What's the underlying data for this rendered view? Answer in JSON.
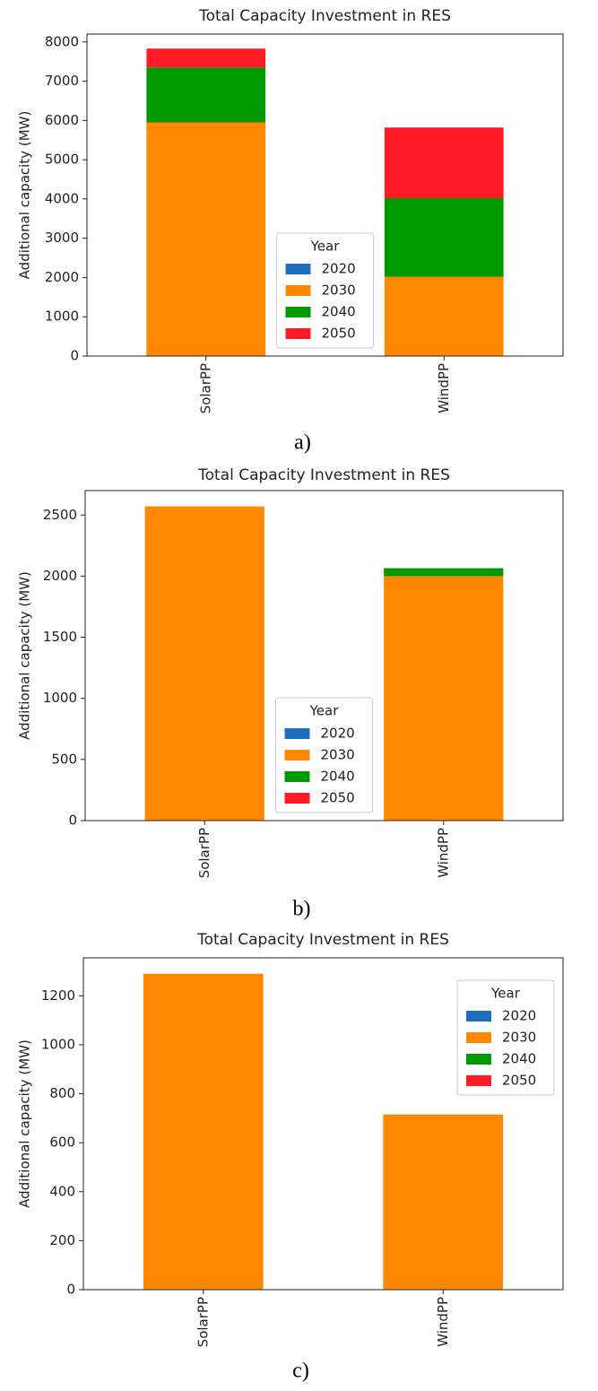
{
  "chart_data": [
    {
      "type": "bar",
      "stacked": true,
      "title": "Total Capacity Investment in RES",
      "ylabel": "Additional capacity (MW)",
      "categories": [
        "SolarPP",
        "WindPP"
      ],
      "series": [
        {
          "name": "2020",
          "color": "#1f6fbf",
          "values": [
            0,
            0
          ]
        },
        {
          "name": "2030",
          "color": "#ff8800",
          "values": [
            5950,
            2020
          ]
        },
        {
          "name": "2040",
          "color": "#009900",
          "values": [
            1400,
            2000
          ]
        },
        {
          "name": "2050",
          "color": "#ff1c24",
          "values": [
            480,
            1800
          ]
        }
      ],
      "legend_title": "Year",
      "legend": "lower center",
      "ylim": [
        0,
        8200
      ],
      "yticks": [
        0,
        1000,
        2000,
        3000,
        4000,
        5000,
        6000,
        7000,
        8000
      ],
      "caption": "a)"
    },
    {
      "type": "bar",
      "stacked": true,
      "title": "Total Capacity Investment in RES",
      "ylabel": "Additional capacity (MW)",
      "categories": [
        "SolarPP",
        "WindPP"
      ],
      "series": [
        {
          "name": "2020",
          "color": "#1f6fbf",
          "values": [
            0,
            0
          ]
        },
        {
          "name": "2030",
          "color": "#ff8800",
          "values": [
            2570,
            2000
          ]
        },
        {
          "name": "2040",
          "color": "#009900",
          "values": [
            0,
            65
          ]
        },
        {
          "name": "2050",
          "color": "#ff1c24",
          "values": [
            0,
            0
          ]
        }
      ],
      "legend_title": "Year",
      "legend": "lower center",
      "ylim": [
        0,
        2700
      ],
      "yticks": [
        0,
        500,
        1000,
        1500,
        2000,
        2500
      ],
      "caption": "b)"
    },
    {
      "type": "bar",
      "stacked": true,
      "title": "Total Capacity Investment in RES",
      "ylabel": "Additional capacity (MW)",
      "categories": [
        "SolarPP",
        "WindPP"
      ],
      "series": [
        {
          "name": "2020",
          "color": "#1f6fbf",
          "values": [
            0,
            0
          ]
        },
        {
          "name": "2030",
          "color": "#ff8800",
          "values": [
            1290,
            715
          ]
        },
        {
          "name": "2040",
          "color": "#009900",
          "values": [
            0,
            0
          ]
        },
        {
          "name": "2050",
          "color": "#ff1c24",
          "values": [
            0,
            0
          ]
        }
      ],
      "legend_title": "Year",
      "legend": "upper right",
      "ylim": [
        0,
        1355
      ],
      "yticks": [
        0,
        200,
        400,
        600,
        800,
        1000,
        1200
      ],
      "caption": "c)"
    }
  ]
}
